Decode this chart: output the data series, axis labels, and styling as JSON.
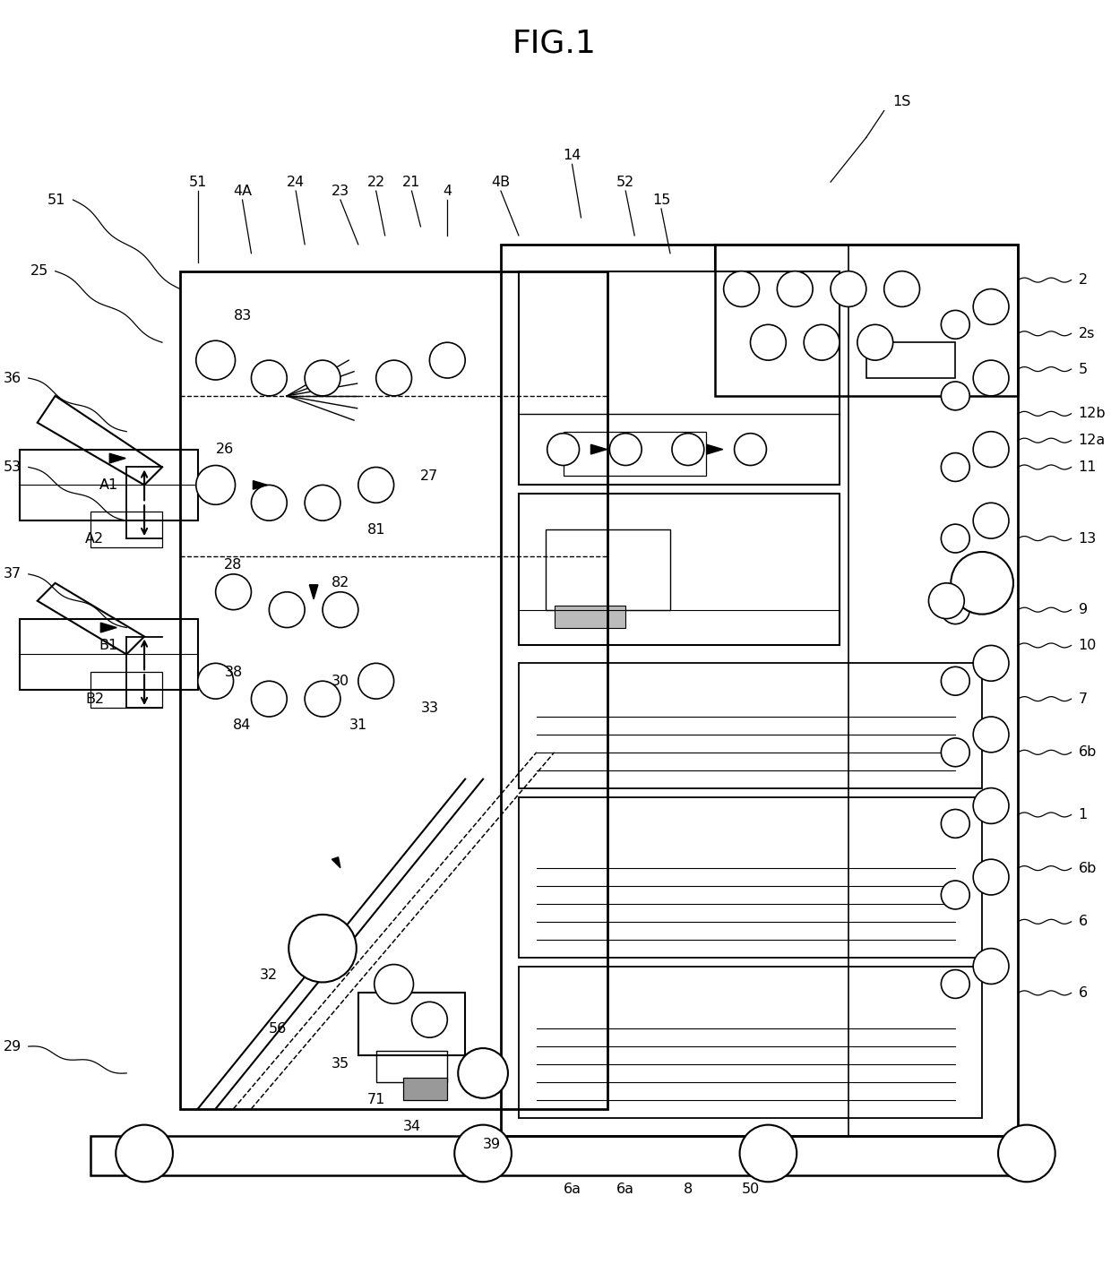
{
  "title": "FIG.1",
  "bg": "#ffffff",
  "title_fontsize": 26,
  "label_fontsize": 11.5,
  "figsize": [
    12.4,
    14.21
  ],
  "dpi": 100,
  "xlim": [
    0,
    124
  ],
  "ylim": [
    0,
    142
  ]
}
